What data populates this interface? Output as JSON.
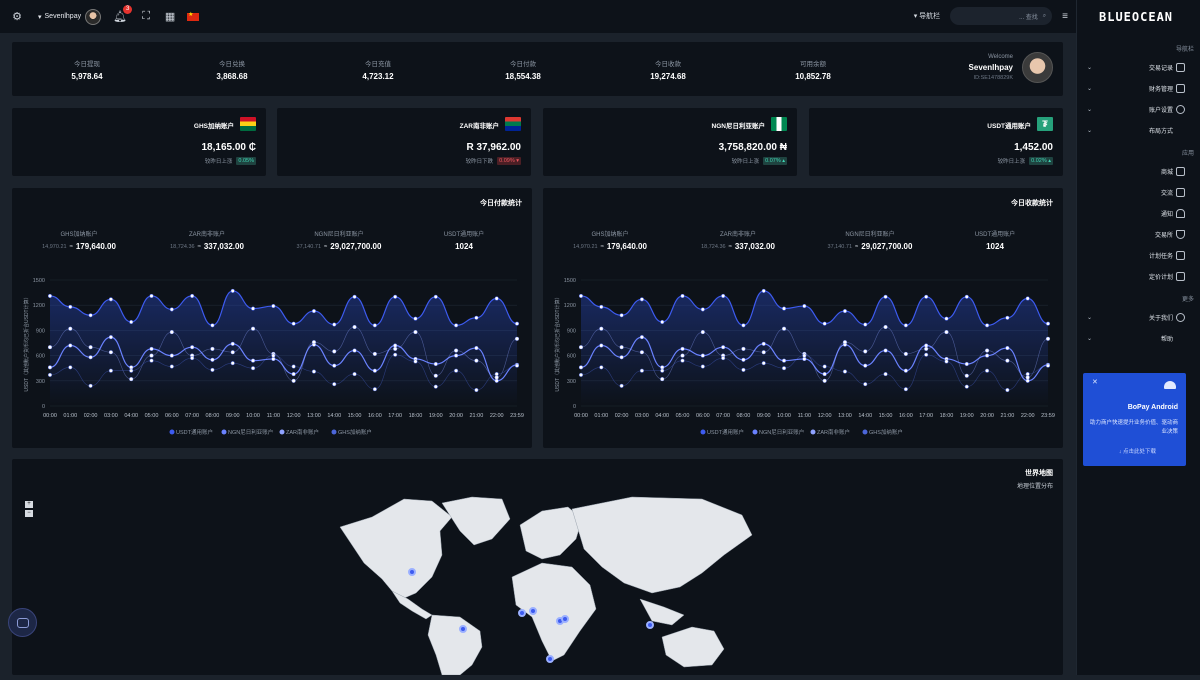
{
  "topbar": {
    "username": "Sevenlhpay",
    "notification_count": "3",
    "nav_label": "导航栏",
    "search_placeholder": "... 查找"
  },
  "summary": {
    "items": [
      {
        "label": "今日提现",
        "value": "5,978.64"
      },
      {
        "label": "今日兑换",
        "value": "3,868.68"
      },
      {
        "label": "今日充值",
        "value": "4,723.12"
      },
      {
        "label": "今日付款",
        "value": "18,554.38"
      },
      {
        "label": "今日收款",
        "value": "19,274.68"
      },
      {
        "label": "可用余额",
        "value": "10,852.78"
      }
    ],
    "welcome": "Welcome",
    "user": "Sevenlhpay",
    "user_id": "ID:SE1478829K"
  },
  "accounts": [
    {
      "name": "GHS加纳账户",
      "balance": "18,165.00 ₵",
      "change_label": "较昨日上涨",
      "change": "0.05%",
      "trend": "up"
    },
    {
      "name": "ZAR南非账户",
      "balance": "R 37,962.00",
      "change_label": "较昨日下跌",
      "change": "0.09% ▾",
      "trend": "down"
    },
    {
      "name": "NGN尼日利亚账户",
      "balance": "3,758,820.00 ₦",
      "change_label": "较昨日上涨",
      "change": "0.07% ▴",
      "trend": "up"
    },
    {
      "name": "USDT通用账户",
      "balance": "1,452.00",
      "change_label": "较昨日上涨",
      "change": "0.02% ▴",
      "trend": "up"
    }
  ],
  "payment_panel": {
    "title": "今日付款统计",
    "stats": [
      {
        "label": "GHS加纳账户",
        "sub": "14,970.21",
        "value": "179,640.00"
      },
      {
        "label": "ZAR南非账户",
        "sub": "18,724.36",
        "value": "337,032.00"
      },
      {
        "label": "NGN尼日利亚账户",
        "sub": "37,140.71",
        "value": "29,027,700.00"
      },
      {
        "label": "USDT通用账户",
        "sub": "",
        "value": "1024"
      }
    ]
  },
  "receipt_panel": {
    "title": "今日收款统计",
    "stats": [
      {
        "label": "GHS加纳账户",
        "sub": "14,970.21",
        "value": "179,640.00"
      },
      {
        "label": "ZAR南非账户",
        "sub": "18,724.36",
        "value": "337,032.00"
      },
      {
        "label": "NGN尼日利亚账户",
        "sub": "37,140.71",
        "value": "29,027,700.00"
      },
      {
        "label": "USDT通用账户",
        "sub": "",
        "value": "1024"
      }
    ]
  },
  "chart_data": [
    {
      "type": "line",
      "ylabel": "USDT（其他账户货币均已折合USDT计算）",
      "ylim": [
        0,
        1500
      ],
      "yticks": [
        0,
        300,
        600,
        900,
        1200,
        1500
      ],
      "categories": [
        "00:00",
        "01:00",
        "02:00",
        "03:00",
        "04:00",
        "05:00",
        "06:00",
        "07:00",
        "08:00",
        "09:00",
        "10:00",
        "11:00",
        "12:00",
        "13:00",
        "14:00",
        "15:00",
        "16:00",
        "17:00",
        "18:00",
        "19:00",
        "20:00",
        "21:00",
        "22:00",
        "23:59"
      ],
      "legend": "bottom",
      "series": [
        {
          "name": "USDT通用账户",
          "values": [
            1310,
            1180,
            1080,
            1270,
            1000,
            1310,
            1150,
            1310,
            960,
            1370,
            1160,
            1190,
            980,
            1130,
            970,
            1300,
            960,
            1300,
            1040,
            1300,
            960,
            1050,
            1280,
            980
          ]
        },
        {
          "name": "NGN尼日利亚账户",
          "values": [
            460,
            720,
            580,
            820,
            460,
            680,
            600,
            700,
            550,
            740,
            540,
            560,
            380,
            730,
            480,
            660,
            420,
            720,
            560,
            500,
            600,
            690,
            300,
            490
          ]
        },
        {
          "name": "ZAR南非账户",
          "values": [
            700,
            920,
            700,
            640,
            320,
            600,
            880,
            600,
            680,
            640,
            920,
            620,
            300,
            760,
            650,
            940,
            620,
            680,
            880,
            360,
            660,
            540,
            340,
            800
          ]
        },
        {
          "name": "GHS加纳账户",
          "values": [
            370,
            460,
            240,
            420,
            420,
            540,
            470,
            570,
            430,
            510,
            450,
            600,
            470,
            410,
            260,
            380,
            200,
            610,
            530,
            230,
            420,
            190,
            380,
            480
          ]
        }
      ]
    },
    {
      "type": "line",
      "ylabel": "USDT（其他账户货币均已折合USDT计算）",
      "ylim": [
        0,
        1500
      ],
      "yticks": [
        0,
        300,
        600,
        900,
        1200,
        1500
      ],
      "categories": [
        "00:00",
        "01:00",
        "02:00",
        "03:00",
        "04:00",
        "05:00",
        "06:00",
        "07:00",
        "08:00",
        "09:00",
        "10:00",
        "11:00",
        "12:00",
        "13:00",
        "14:00",
        "15:00",
        "16:00",
        "17:00",
        "18:00",
        "19:00",
        "20:00",
        "21:00",
        "22:00",
        "23:59"
      ],
      "legend": "bottom",
      "series": [
        {
          "name": "USDT通用账户",
          "values": [
            1310,
            1180,
            1080,
            1270,
            1000,
            1310,
            1150,
            1310,
            960,
            1370,
            1160,
            1190,
            980,
            1130,
            970,
            1300,
            960,
            1300,
            1040,
            1300,
            960,
            1050,
            1280,
            980
          ]
        },
        {
          "name": "NGN尼日利亚账户",
          "values": [
            460,
            720,
            580,
            820,
            460,
            680,
            600,
            700,
            550,
            740,
            540,
            560,
            380,
            730,
            480,
            660,
            420,
            720,
            560,
            500,
            600,
            690,
            300,
            490
          ]
        },
        {
          "name": "ZAR南非账户",
          "values": [
            700,
            920,
            700,
            640,
            320,
            600,
            880,
            600,
            680,
            640,
            920,
            620,
            300,
            760,
            650,
            940,
            620,
            680,
            880,
            360,
            660,
            540,
            340,
            800
          ]
        },
        {
          "name": "GHS加纳账户",
          "values": [
            370,
            460,
            240,
            420,
            420,
            540,
            470,
            570,
            430,
            510,
            450,
            600,
            470,
            410,
            260,
            380,
            200,
            610,
            530,
            230,
            420,
            190,
            380,
            480
          ]
        }
      ]
    }
  ],
  "map": {
    "title": "世界地图",
    "subtitle": "地理位置分布",
    "zoom_in": "+",
    "zoom_out": "−"
  },
  "sidebar": {
    "logo": "BLUEOCEAN",
    "nav_head": "导航栏",
    "group1": [
      {
        "label": "交易记录",
        "chevron": true
      },
      {
        "label": "财务管理",
        "chevron": true
      },
      {
        "label": "账户设置",
        "chevron": true
      },
      {
        "label": "布局方式",
        "chevron": true
      }
    ],
    "apps_head": "应用",
    "group2": [
      {
        "label": "商城"
      },
      {
        "label": "交流"
      },
      {
        "label": "通知"
      },
      {
        "label": "交易所"
      },
      {
        "label": "计划任务"
      },
      {
        "label": "定价计划"
      }
    ],
    "more_head": "更多",
    "group3": [
      {
        "label": "关于我们",
        "chevron": true
      },
      {
        "label": "帮助",
        "chevron": true
      }
    ]
  },
  "promo": {
    "title": "BoPay Android",
    "desc": "助力商户快速提升业务价值、驱动商业决策",
    "download": "↓ 点击此处下载"
  },
  "colors": {
    "accent": "#2f55e8",
    "series": [
      "#3d5bf0",
      "#6a82ff",
      "#8fa2ff",
      "#4c66d9"
    ]
  }
}
